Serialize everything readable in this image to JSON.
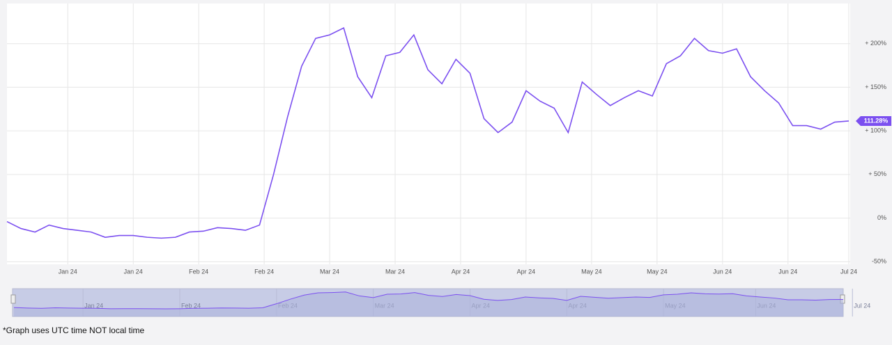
{
  "chart_data": {
    "type": "line",
    "x": [
      0,
      3,
      6,
      9,
      12,
      15,
      18,
      21,
      24,
      27,
      30,
      33,
      36,
      39,
      42,
      45,
      48,
      51,
      54,
      57,
      60,
      63,
      66,
      69,
      72,
      75,
      78,
      81,
      84,
      87,
      90,
      93,
      96,
      99,
      102,
      105,
      108,
      111,
      114,
      117,
      120,
      123,
      126,
      129,
      132,
      135,
      138,
      141,
      144,
      147,
      150,
      153,
      156,
      159,
      162,
      165,
      168,
      171,
      174,
      177,
      180
    ],
    "series": [
      {
        "color": "#7b4ff0",
        "values": [
          -4,
          -12,
          -16,
          -8,
          -12,
          -14,
          -16,
          -22,
          -20,
          -20,
          -22,
          -23,
          -22,
          -16,
          -15,
          -11,
          -12,
          -14,
          -8,
          50,
          116,
          174,
          206,
          210,
          218,
          162,
          138,
          186,
          190,
          210,
          170,
          154,
          182,
          166,
          114,
          98,
          110,
          146,
          134,
          126,
          98,
          156,
          142,
          129,
          138,
          146,
          140,
          177,
          186,
          206,
          192,
          189,
          194,
          162,
          146,
          132,
          106,
          106,
          102,
          110,
          111.28
        ],
        "value_labels": [
          null,
          null,
          null,
          null,
          null,
          null,
          null,
          null,
          null,
          null,
          null,
          null,
          null,
          null,
          null,
          null,
          null,
          null,
          null,
          null,
          null,
          null,
          null,
          null,
          null,
          null,
          null,
          null,
          null,
          null,
          null,
          null,
          null,
          null,
          null,
          null,
          null,
          null,
          null,
          null,
          null,
          null,
          null,
          null,
          null,
          null,
          null,
          null,
          null,
          null,
          null,
          null,
          null,
          null,
          null,
          null,
          null,
          null,
          null,
          null,
          "111.28%"
        ]
      }
    ],
    "xlim": [
      0,
      180
    ],
    "xticks": [
      {
        "value": 13,
        "label": "Jan 24"
      },
      {
        "value": 27,
        "label": "Jan 24"
      },
      {
        "value": 41,
        "label": "Feb 24"
      },
      {
        "value": 55,
        "label": "Feb 24"
      },
      {
        "value": 69,
        "label": "Mar 24"
      },
      {
        "value": 83,
        "label": "Mar 24"
      },
      {
        "value": 97,
        "label": "Apr 24"
      },
      {
        "value": 111,
        "label": "Apr 24"
      },
      {
        "value": 125,
        "label": "May 24"
      },
      {
        "value": 139,
        "label": "May 24"
      },
      {
        "value": 153,
        "label": "Jun 24"
      },
      {
        "value": 167,
        "label": "Jun 24"
      },
      {
        "value": 180,
        "label": "Jul 24"
      }
    ],
    "ylim": [
      -53,
      246
    ],
    "yticks": [
      {
        "value": 200,
        "label": "+ 200%"
      },
      {
        "value": 150,
        "label": "+ 150%"
      },
      {
        "value": 100,
        "label": "+ 100%"
      },
      {
        "value": 50,
        "label": "+ 50%"
      },
      {
        "value": 0,
        "label": "0%"
      },
      {
        "value": -50,
        "label": "-50%"
      }
    ],
    "grid": true,
    "navigator_xticks": [
      {
        "value": 15,
        "label": "Jan 24"
      },
      {
        "value": 36,
        "label": "Feb 24"
      },
      {
        "value": 57,
        "label": "Feb 24"
      },
      {
        "value": 78,
        "label": "Mar 24"
      },
      {
        "value": 99,
        "label": "Apr 24"
      },
      {
        "value": 120,
        "label": "Apr 24"
      },
      {
        "value": 141,
        "label": "May 24"
      },
      {
        "value": 161,
        "label": "Jun 24"
      },
      {
        "value": 182,
        "label": "Jul 24"
      }
    ],
    "footnote": "*Graph uses UTC time NOT local time"
  }
}
